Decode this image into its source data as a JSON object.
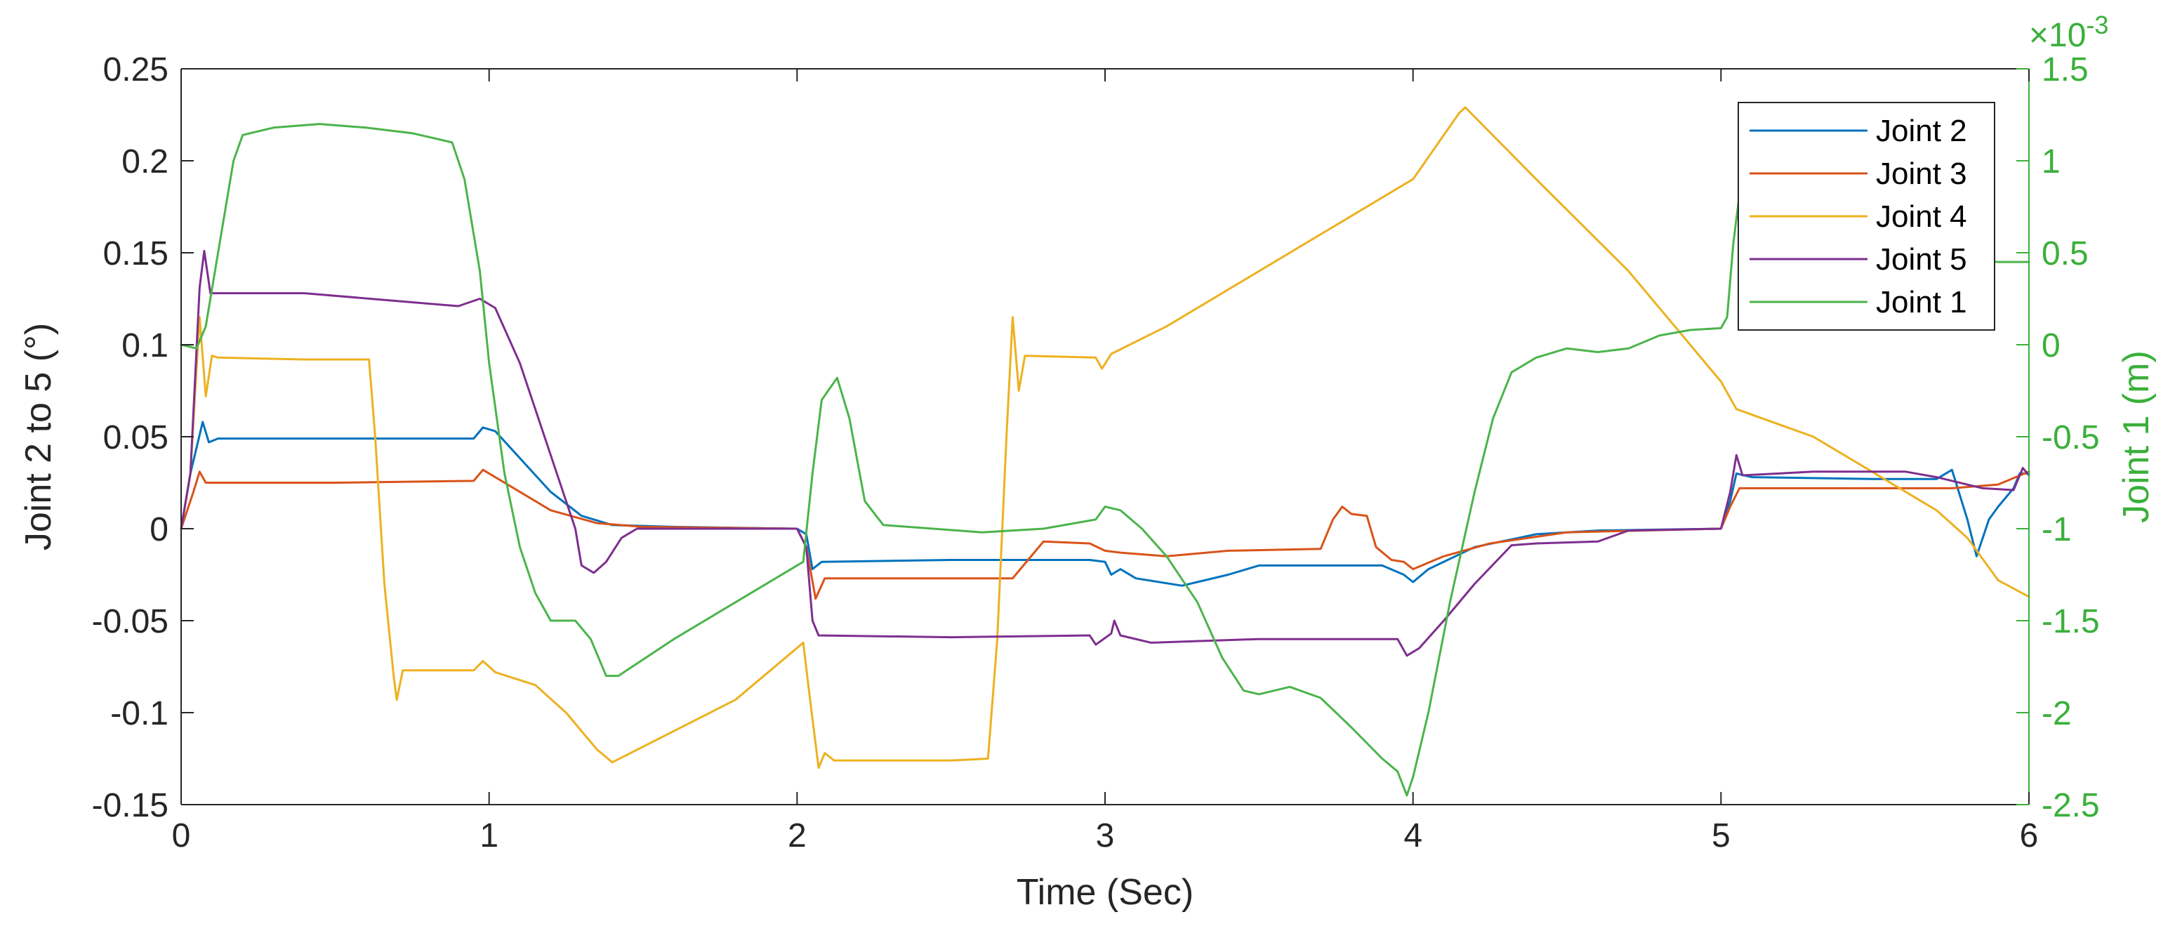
{
  "chart_data": {
    "type": "line",
    "xlabel": "Time (Sec)",
    "ylabel": "Joint 2 to 5 (°)",
    "y2label": "Joint 1 (m)",
    "y2_exponent_label": "×10",
    "y2_exponent_power": "-3",
    "xlim": [
      0,
      6
    ],
    "ylim": [
      -0.15,
      0.25
    ],
    "y2lim": [
      -2.5,
      1.5
    ],
    "grid": false,
    "legend_position": "top-right",
    "x_ticks": [
      "0",
      "1",
      "2",
      "3",
      "4",
      "5",
      "6"
    ],
    "y_ticks": [
      "0.25",
      "0.2",
      "0.15",
      "0.1",
      "0.05",
      "0",
      "-0.05",
      "-0.1",
      "-0.15"
    ],
    "y2_ticks": [
      "1.5",
      "1",
      "0.5",
      "0",
      "-0.5",
      "-1",
      "-1.5",
      "-2",
      "-2.5"
    ],
    "series": [
      {
        "name": "Joint 2",
        "color": "#0072BD",
        "axis": "left",
        "points": [
          [
            0,
            0
          ],
          [
            0.03,
            0.03
          ],
          [
            0.07,
            0.058
          ],
          [
            0.09,
            0.047
          ],
          [
            0.12,
            0.049
          ],
          [
            0.5,
            0.049
          ],
          [
            0.95,
            0.049
          ],
          [
            0.98,
            0.055
          ],
          [
            1.02,
            0.053
          ],
          [
            1.2,
            0.02
          ],
          [
            1.3,
            0.007
          ],
          [
            1.4,
            0.002
          ],
          [
            1.6,
            0.001
          ],
          [
            2.0,
            0.0
          ],
          [
            2.03,
            -0.003
          ],
          [
            2.05,
            -0.022
          ],
          [
            2.08,
            -0.018
          ],
          [
            2.5,
            -0.017
          ],
          [
            2.95,
            -0.017
          ],
          [
            3.0,
            -0.018
          ],
          [
            3.02,
            -0.025
          ],
          [
            3.05,
            -0.022
          ],
          [
            3.1,
            -0.027
          ],
          [
            3.25,
            -0.031
          ],
          [
            3.4,
            -0.025
          ],
          [
            3.5,
            -0.02
          ],
          [
            3.9,
            -0.02
          ],
          [
            3.97,
            -0.025
          ],
          [
            4.0,
            -0.029
          ],
          [
            4.05,
            -0.022
          ],
          [
            4.2,
            -0.01
          ],
          [
            4.4,
            -0.003
          ],
          [
            4.6,
            -0.001
          ],
          [
            5.0,
            0.0
          ],
          [
            5.03,
            0.015
          ],
          [
            5.05,
            0.03
          ],
          [
            5.1,
            0.028
          ],
          [
            5.5,
            0.027
          ],
          [
            5.7,
            0.027
          ],
          [
            5.75,
            0.032
          ],
          [
            5.8,
            0.005
          ],
          [
            5.83,
            -0.015
          ],
          [
            5.87,
            0.005
          ],
          [
            5.9,
            0.012
          ],
          [
            5.95,
            0.022
          ],
          [
            5.97,
            0.03
          ],
          [
            6.0,
            0.03
          ]
        ]
      },
      {
        "name": "Joint 3",
        "color": "#D95319",
        "axis": "left",
        "points": [
          [
            0,
            0
          ],
          [
            0.04,
            0.02
          ],
          [
            0.06,
            0.031
          ],
          [
            0.08,
            0.025
          ],
          [
            0.5,
            0.025
          ],
          [
            0.95,
            0.026
          ],
          [
            0.98,
            0.032
          ],
          [
            1.02,
            0.028
          ],
          [
            1.2,
            0.01
          ],
          [
            1.35,
            0.003
          ],
          [
            1.5,
            0.001
          ],
          [
            2.0,
            0.0
          ],
          [
            2.03,
            -0.01
          ],
          [
            2.06,
            -0.038
          ],
          [
            2.09,
            -0.027
          ],
          [
            2.5,
            -0.027
          ],
          [
            2.7,
            -0.027
          ],
          [
            2.75,
            -0.017
          ],
          [
            2.8,
            -0.007
          ],
          [
            2.95,
            -0.008
          ],
          [
            3.0,
            -0.012
          ],
          [
            3.05,
            -0.013
          ],
          [
            3.2,
            -0.015
          ],
          [
            3.4,
            -0.012
          ],
          [
            3.7,
            -0.011
          ],
          [
            3.74,
            0.005
          ],
          [
            3.77,
            0.012
          ],
          [
            3.8,
            0.008
          ],
          [
            3.85,
            0.007
          ],
          [
            3.88,
            -0.01
          ],
          [
            3.93,
            -0.017
          ],
          [
            3.97,
            -0.018
          ],
          [
            4.0,
            -0.022
          ],
          [
            4.1,
            -0.015
          ],
          [
            4.25,
            -0.008
          ],
          [
            4.5,
            -0.002
          ],
          [
            5.0,
            0.0
          ],
          [
            5.03,
            0.012
          ],
          [
            5.06,
            0.022
          ],
          [
            5.5,
            0.022
          ],
          [
            5.75,
            0.022
          ],
          [
            5.9,
            0.024
          ],
          [
            6.0,
            0.031
          ]
        ]
      },
      {
        "name": "Joint 4",
        "color": "#EDB120",
        "axis": "left",
        "points": [
          [
            0,
            0
          ],
          [
            0.03,
            0.03
          ],
          [
            0.06,
            0.115
          ],
          [
            0.08,
            0.072
          ],
          [
            0.1,
            0.094
          ],
          [
            0.12,
            0.093
          ],
          [
            0.4,
            0.092
          ],
          [
            0.61,
            0.092
          ],
          [
            0.63,
            0.05
          ],
          [
            0.66,
            -0.03
          ],
          [
            0.69,
            -0.08
          ],
          [
            0.7,
            -0.093
          ],
          [
            0.72,
            -0.077
          ],
          [
            0.95,
            -0.077
          ],
          [
            0.98,
            -0.072
          ],
          [
            1.02,
            -0.078
          ],
          [
            1.15,
            -0.085
          ],
          [
            1.25,
            -0.1
          ],
          [
            1.35,
            -0.12
          ],
          [
            1.4,
            -0.127
          ],
          [
            1.6,
            -0.11
          ],
          [
            1.8,
            -0.093
          ],
          [
            2.02,
            -0.062
          ],
          [
            2.04,
            -0.09
          ],
          [
            2.07,
            -0.13
          ],
          [
            2.09,
            -0.122
          ],
          [
            2.12,
            -0.126
          ],
          [
            2.5,
            -0.126
          ],
          [
            2.62,
            -0.125
          ],
          [
            2.65,
            -0.06
          ],
          [
            2.68,
            0.05
          ],
          [
            2.7,
            0.115
          ],
          [
            2.72,
            0.075
          ],
          [
            2.74,
            0.094
          ],
          [
            2.97,
            0.093
          ],
          [
            2.99,
            0.087
          ],
          [
            3.02,
            0.095
          ],
          [
            3.2,
            0.11
          ],
          [
            3.5,
            0.14
          ],
          [
            3.8,
            0.17
          ],
          [
            4.0,
            0.19
          ],
          [
            4.15,
            0.226
          ],
          [
            4.17,
            0.229
          ],
          [
            4.4,
            0.19
          ],
          [
            4.7,
            0.14
          ],
          [
            5.0,
            0.08
          ],
          [
            5.05,
            0.065
          ],
          [
            5.3,
            0.05
          ],
          [
            5.5,
            0.03
          ],
          [
            5.7,
            0.01
          ],
          [
            5.8,
            -0.005
          ],
          [
            5.9,
            -0.028
          ],
          [
            6.0,
            -0.037
          ]
        ]
      },
      {
        "name": "Joint 5",
        "color": "#7E2F8E",
        "axis": "left",
        "points": [
          [
            0,
            0
          ],
          [
            0.03,
            0.03
          ],
          [
            0.06,
            0.131
          ],
          [
            0.075,
            0.151
          ],
          [
            0.095,
            0.128
          ],
          [
            0.4,
            0.128
          ],
          [
            0.9,
            0.121
          ],
          [
            0.97,
            0.125
          ],
          [
            1.02,
            0.12
          ],
          [
            1.1,
            0.09
          ],
          [
            1.2,
            0.04
          ],
          [
            1.28,
            0.0
          ],
          [
            1.3,
            -0.02
          ],
          [
            1.34,
            -0.024
          ],
          [
            1.38,
            -0.018
          ],
          [
            1.43,
            -0.005
          ],
          [
            1.48,
            0.0
          ],
          [
            2.0,
            0.0
          ],
          [
            2.03,
            -0.01
          ],
          [
            2.05,
            -0.05
          ],
          [
            2.07,
            -0.058
          ],
          [
            2.5,
            -0.059
          ],
          [
            2.95,
            -0.058
          ],
          [
            2.97,
            -0.063
          ],
          [
            3.02,
            -0.057
          ],
          [
            3.03,
            -0.05
          ],
          [
            3.05,
            -0.058
          ],
          [
            3.15,
            -0.062
          ],
          [
            3.5,
            -0.06
          ],
          [
            3.9,
            -0.06
          ],
          [
            3.95,
            -0.06
          ],
          [
            3.98,
            -0.069
          ],
          [
            4.02,
            -0.065
          ],
          [
            4.1,
            -0.05
          ],
          [
            4.2,
            -0.03
          ],
          [
            4.32,
            -0.009
          ],
          [
            4.4,
            -0.008
          ],
          [
            4.6,
            -0.007
          ],
          [
            4.7,
            -0.001
          ],
          [
            5.0,
            0.0
          ],
          [
            5.03,
            0.02
          ],
          [
            5.05,
            0.04
          ],
          [
            5.07,
            0.029
          ],
          [
            5.3,
            0.031
          ],
          [
            5.6,
            0.031
          ],
          [
            5.7,
            0.028
          ],
          [
            5.85,
            0.022
          ],
          [
            5.95,
            0.021
          ],
          [
            5.98,
            0.033
          ],
          [
            6.0,
            0.029
          ]
        ]
      },
      {
        "name": "Joint 1",
        "color": "#4BB44B",
        "axis": "right",
        "points": [
          [
            0,
            0.0
          ],
          [
            0.05,
            -0.02
          ],
          [
            0.08,
            0.1
          ],
          [
            0.12,
            0.5
          ],
          [
            0.17,
            1.0
          ],
          [
            0.2,
            1.14
          ],
          [
            0.3,
            1.18
          ],
          [
            0.45,
            1.2
          ],
          [
            0.6,
            1.18
          ],
          [
            0.75,
            1.15
          ],
          [
            0.88,
            1.1
          ],
          [
            0.92,
            0.9
          ],
          [
            0.97,
            0.4
          ],
          [
            1.0,
            -0.1
          ],
          [
            1.05,
            -0.7
          ],
          [
            1.1,
            -1.1
          ],
          [
            1.15,
            -1.35
          ],
          [
            1.2,
            -1.5
          ],
          [
            1.28,
            -1.5
          ],
          [
            1.33,
            -1.6
          ],
          [
            1.38,
            -1.8
          ],
          [
            1.42,
            -1.8
          ],
          [
            1.6,
            -1.6
          ],
          [
            1.8,
            -1.4
          ],
          [
            2.02,
            -1.18
          ],
          [
            2.05,
            -0.7
          ],
          [
            2.08,
            -0.3
          ],
          [
            2.13,
            -0.18
          ],
          [
            2.17,
            -0.4
          ],
          [
            2.22,
            -0.85
          ],
          [
            2.28,
            -0.98
          ],
          [
            2.6,
            -1.02
          ],
          [
            2.8,
            -1.0
          ],
          [
            2.97,
            -0.95
          ],
          [
            3.0,
            -0.88
          ],
          [
            3.05,
            -0.9
          ],
          [
            3.12,
            -1.0
          ],
          [
            3.2,
            -1.15
          ],
          [
            3.3,
            -1.4
          ],
          [
            3.38,
            -1.7
          ],
          [
            3.45,
            -1.88
          ],
          [
            3.5,
            -1.9
          ],
          [
            3.6,
            -1.86
          ],
          [
            3.7,
            -1.92
          ],
          [
            3.8,
            -2.08
          ],
          [
            3.9,
            -2.25
          ],
          [
            3.95,
            -2.32
          ],
          [
            3.98,
            -2.45
          ],
          [
            4.0,
            -2.35
          ],
          [
            4.05,
            -2.0
          ],
          [
            4.12,
            -1.4
          ],
          [
            4.2,
            -0.8
          ],
          [
            4.26,
            -0.4
          ],
          [
            4.32,
            -0.15
          ],
          [
            4.4,
            -0.07
          ],
          [
            4.5,
            -0.02
          ],
          [
            4.6,
            -0.04
          ],
          [
            4.7,
            -0.02
          ],
          [
            4.8,
            0.05
          ],
          [
            4.9,
            0.08
          ],
          [
            5.0,
            0.09
          ],
          [
            5.02,
            0.15
          ],
          [
            5.04,
            0.55
          ],
          [
            5.06,
            0.82
          ],
          [
            5.1,
            0.84
          ],
          [
            5.2,
            0.7
          ],
          [
            5.4,
            0.6
          ],
          [
            5.6,
            0.52
          ],
          [
            5.8,
            0.46
          ],
          [
            5.9,
            0.45
          ],
          [
            6.0,
            0.45
          ]
        ]
      }
    ]
  }
}
